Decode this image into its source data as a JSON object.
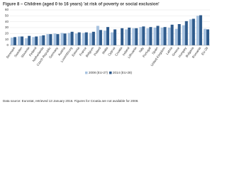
{
  "chart_data": {
    "type": "bar",
    "title": "Figure 8 – Children (aged 0 to 16 years) 'at risk of poverty or social exclusion'",
    "categories": [
      "Denmark",
      "Sweden",
      "Slovenia",
      "Finland",
      "Netherlands",
      "Czech Republic",
      "Germany",
      "Austria",
      "Luxembourg",
      "Estonia",
      "France",
      "Belgium",
      "Poland",
      "Malta",
      "Cyprus",
      "Croatia",
      "Ireland",
      "Lithuania",
      "Italy",
      "Portugal",
      "Spain",
      "United Kingdom",
      "Latvia",
      "Greece",
      "Hungary",
      "Bulgaria",
      "Romania",
      "EU-28"
    ],
    "series": [
      {
        "name": "2008 (EU-27)",
        "color": "#a8c3e0",
        "values": [
          13,
          15,
          12,
          14,
          16,
          19,
          20,
          21,
          21,
          20,
          21,
          21,
          33,
          25,
          22,
          null,
          27,
          29,
          31,
          29,
          30,
          30,
          30,
          28,
          34,
          44,
          50,
          28
        ]
      },
      {
        "name": "2014 (EU-28)",
        "color": "#2f5b8c",
        "values": [
          14,
          15,
          16,
          15,
          17,
          19,
          19,
          20,
          23,
          22,
          22,
          23,
          26,
          31,
          27,
          29,
          30,
          29,
          32,
          31,
          33,
          31,
          35,
          36,
          41,
          45,
          51,
          27
        ]
      }
    ],
    "ylim": [
      0,
      60
    ],
    "yticks": [
      0,
      10,
      20,
      30,
      40,
      50,
      60
    ],
    "grid": true,
    "source": "Data source: Eurostat, retrieved 13 January 2016. Figures for Croatia are not available for 2008."
  }
}
